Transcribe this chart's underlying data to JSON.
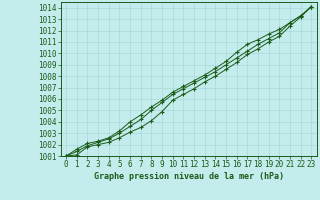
{
  "xlabel": "Graphe pression niveau de la mer (hPa)",
  "xlim": [
    -0.5,
    23.5
  ],
  "ylim": [
    1001.0,
    1014.5
  ],
  "yticks": [
    1001,
    1002,
    1003,
    1004,
    1005,
    1006,
    1007,
    1008,
    1009,
    1010,
    1011,
    1012,
    1013,
    1014
  ],
  "xticks": [
    0,
    1,
    2,
    3,
    4,
    5,
    6,
    7,
    8,
    9,
    10,
    11,
    12,
    13,
    14,
    15,
    16,
    17,
    18,
    19,
    20,
    21,
    22,
    23
  ],
  "background_color": "#c5ecec",
  "grid_color": "#a8d8d8",
  "line_color": "#1a5c1a",
  "line1_y": [
    1001.0,
    1001.1,
    1001.8,
    1002.0,
    1002.2,
    1002.6,
    1003.1,
    1003.5,
    1004.1,
    1004.9,
    1005.9,
    1006.4,
    1006.9,
    1007.5,
    1008.0,
    1008.6,
    1009.2,
    1009.9,
    1010.4,
    1011.0,
    1011.5,
    1012.4,
    1013.2,
    1014.1
  ],
  "line2_y": [
    1001.0,
    1001.4,
    1001.9,
    1002.2,
    1002.5,
    1003.0,
    1003.6,
    1004.2,
    1005.0,
    1005.7,
    1006.4,
    1006.9,
    1007.4,
    1007.9,
    1008.4,
    1009.0,
    1009.6,
    1010.2,
    1010.8,
    1011.3,
    1011.8,
    1012.7,
    1013.3,
    1014.1
  ],
  "line3_y": [
    1001.0,
    1001.6,
    1002.1,
    1002.3,
    1002.6,
    1003.2,
    1004.0,
    1004.6,
    1005.3,
    1005.9,
    1006.6,
    1007.1,
    1007.6,
    1008.1,
    1008.7,
    1009.3,
    1010.1,
    1010.8,
    1011.2,
    1011.7,
    1012.1,
    1012.7,
    1013.3,
    1014.1
  ],
  "tick_fontsize": 5.5,
  "xlabel_fontsize": 6.0
}
